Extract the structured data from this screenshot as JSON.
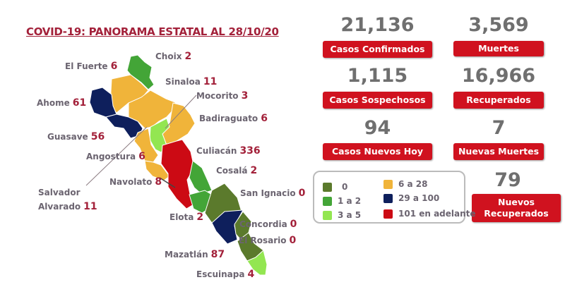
{
  "title": "COVID-19: PANORAMA ESTATAL AL 28/10/20",
  "colors": {
    "c0": "#5b7a2c",
    "c1": "#43a537",
    "c3": "#93e651",
    "c6": "#f0b43a",
    "c29": "#0e1f5c",
    "c101": "#cc0a14",
    "accent": "#d0121f"
  },
  "municipios": [
    {
      "name": "Choix",
      "value": "2",
      "range": "c1"
    },
    {
      "name": "El Fuerte",
      "value": "6",
      "range": "c6"
    },
    {
      "name": "Sinaloa",
      "value": "11",
      "range": "c6"
    },
    {
      "name": "Ahome",
      "value": "61",
      "range": "c29"
    },
    {
      "name": "Mocorito",
      "value": "3",
      "range": "c3"
    },
    {
      "name": "Badiraguato",
      "value": "6",
      "range": "c6"
    },
    {
      "name": "Guasave",
      "value": "56",
      "range": "c29"
    },
    {
      "name": "Angostura",
      "value": "6",
      "range": "c6"
    },
    {
      "name": "Culiacán",
      "value": "336",
      "range": "c101"
    },
    {
      "name": "Cosalá",
      "value": "2",
      "range": "c1"
    },
    {
      "name": "Navolato",
      "value": "8",
      "range": "c6"
    },
    {
      "name": "San Ignacio",
      "value": "0",
      "range": "c0"
    },
    {
      "name": "Salvador",
      "name2": "Alvarado",
      "value": "11",
      "range": "c6"
    },
    {
      "name": "Elota",
      "value": "2",
      "range": "c1"
    },
    {
      "name": "Concordia",
      "value": "0",
      "range": "c0"
    },
    {
      "name": "El Rosario",
      "value": "0",
      "range": "c0"
    },
    {
      "name": "Mazatlán",
      "value": "87",
      "range": "c29"
    },
    {
      "name": "Escuinapa",
      "value": "4",
      "range": "c3"
    }
  ],
  "stats": [
    {
      "value": "21,136",
      "label": "Casos Confirmados"
    },
    {
      "value": "3,569",
      "label": "Muertes"
    },
    {
      "value": "1,115",
      "label": "Casos Sospechosos"
    },
    {
      "value": "16,966",
      "label": "Recuperados"
    },
    {
      "value": "94",
      "label": "Casos Nuevos Hoy"
    },
    {
      "value": "7",
      "label": "Nuevas Muertes"
    },
    {
      "value": "79",
      "label": "Nuevos Recuperados"
    }
  ],
  "legend": [
    {
      "label": "0",
      "color": "#5b7a2c"
    },
    {
      "label": "1 a 2",
      "color": "#43a537"
    },
    {
      "label": "3 a 5",
      "color": "#93e651"
    },
    {
      "label": "6 a 28",
      "color": "#f0b43a"
    },
    {
      "label": "29 a 100",
      "color": "#0e1f5c"
    },
    {
      "label": "101 en adelante",
      "color": "#cc0a14"
    }
  ]
}
